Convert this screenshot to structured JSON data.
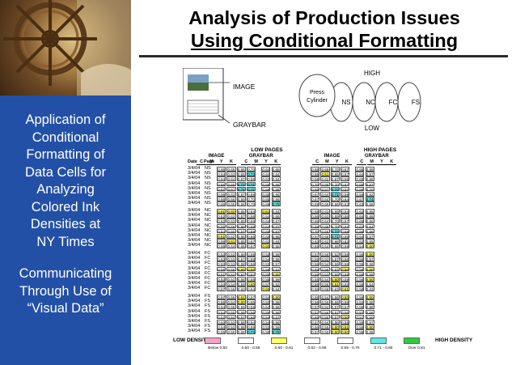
{
  "title": {
    "line1": "Analysis of Production Issues",
    "line2": "Using Conditional Formatting"
  },
  "sidebar": {
    "text1": [
      "Application of",
      "Conditional",
      "Formatting of",
      "Data Cells for",
      "Analyzing",
      "Colored Ink",
      "Densities at",
      "NY Times"
    ],
    "text2": [
      "Communicating",
      "Through Use of",
      "“Visual Data”"
    ]
  },
  "diagram": {
    "image_label": "IMAGE",
    "graybar_label": "GRAYBAR",
    "high_label": "HIGH",
    "low_label": "LOW",
    "press": "Press",
    "cylinder": "Cylinder",
    "units": [
      "NS",
      "NC",
      "FC",
      "FS"
    ]
  },
  "table": {
    "low_pages": "LOW PAGES",
    "high_pages": "HIGH PAGES",
    "group_image": "IMAGE",
    "group_graybar": "GRAYBAR",
    "col_date": "Date",
    "col_page": "Page",
    "cmyk": [
      "C",
      "M",
      "Y",
      "K"
    ],
    "row_date": "3/4/04",
    "groups": [
      {
        "page": "NS",
        "rows": [
          [
            "0.65",
            "0.65",
            "0.66",
            "0.70",
            "0.64",
            "0.65",
            "0.68",
            "0.68",
            "0.70",
            "0.67",
            "0.65",
            "0.69"
          ],
          [
            "0.64",
            "0.63",
            "0.65",
            "0.73",
            "0.64",
            "0.64",
            "0.65",
            "0.61",
            "0.65",
            "0.67",
            "0.64",
            "0.67"
          ],
          [
            "0.64",
            "0.64",
            "0.67",
            "0.68",
            "0.63",
            "0.64",
            "0.66",
            "0.62",
            "0.67",
            "0.66",
            "0.65",
            "0.68"
          ],
          [
            "0.66",
            "0.68",
            "0.72",
            "0.71",
            "0.66",
            "0.66",
            "0.70",
            "0.68",
            "0.70",
            "0.67",
            "0.65",
            "0.67"
          ],
          [
            "0.67",
            "0.67",
            "0.74",
            "0.71",
            "0.66",
            "0.68",
            "0.69",
            "0.67",
            "0.72",
            "0.67",
            "0.66",
            "0.70"
          ],
          [
            "0.65",
            "0.63",
            "0.67",
            "0.69",
            "0.65",
            "0.66",
            "0.67",
            "0.64",
            "0.71",
            "0.59",
            "0.59",
            "0.62"
          ],
          [
            "0.66",
            "0.66",
            "0.69",
            "0.70",
            "0.65",
            "0.66",
            "0.67",
            "0.64",
            "0.70",
            "0.64",
            "0.67",
            "0.74"
          ],
          [
            "0.66",
            "0.65",
            "0.66",
            "0.70",
            "0.66",
            "0.75",
            "0.69",
            "0.66",
            "0.66",
            "0.63",
            "0.63",
            "0.66"
          ]
        ]
      },
      {
        "page": "NC",
        "rows": [
          [
            "0.61",
            "0.60",
            "0.65",
            "0.64",
            "0.61",
            "0.64",
            "0.68",
            "0.63",
            "0.69",
            "0.64",
            "0.62",
            "0.65"
          ],
          [
            "0.62",
            "0.62",
            "0.67",
            "0.68",
            "0.64",
            "0.66",
            "0.66",
            "0.63",
            "0.69",
            "0.66",
            "0.64",
            "0.66"
          ],
          [
            "0.62",
            "0.63",
            "0.66",
            "0.66",
            "0.64",
            "0.67",
            "0.66",
            "0.64",
            "0.70",
            "0.67",
            "0.65",
            "0.66"
          ],
          [
            "0.65",
            "0.65",
            "0.68",
            "0.69",
            "0.64",
            "0.67",
            "0.69",
            "0.66",
            "0.70",
            "0.62",
            "0.62",
            "0.54"
          ],
          [
            "0.64",
            "0.65",
            "0.67",
            "0.69",
            "0.66",
            "0.67",
            "0.70",
            "0.66",
            "0.73",
            "0.68",
            "0.66",
            "0.69"
          ],
          [
            "0.61",
            "0.62",
            "0.66",
            "0.66",
            "0.63",
            "0.66",
            "0.67",
            "0.66",
            "0.71",
            "0.65",
            "0.64",
            "0.67"
          ],
          [
            "0.59",
            "0.61",
            "0.65",
            "0.67",
            "0.62",
            "0.64",
            "0.63",
            "0.62",
            "0.68",
            "0.63",
            "0.62",
            "0.65"
          ],
          [
            "0.65",
            "0.64",
            "0.65",
            "0.67",
            "0.60",
            "0.55",
            "0.59",
            "0.64",
            "0.66",
            "0.59",
            "0.54",
            "0.60"
          ]
        ]
      },
      {
        "page": "FC",
        "rows": [
          [
            "0.53",
            "0.53",
            "0.58",
            "0.59",
            "0.53",
            "0.58",
            "0.57",
            "0.56",
            "0.62",
            "0.58",
            "0.56",
            "0.60"
          ],
          [
            "0.53",
            "0.53",
            "0.57",
            "0.58",
            "0.54",
            "0.58",
            "0.55",
            "0.53",
            "0.57",
            "0.56",
            "0.55",
            "0.57"
          ],
          [
            "0.53",
            "0.53",
            "0.58",
            "0.56",
            "0.53",
            "0.57",
            "0.56",
            "0.54",
            "0.59",
            "0.58",
            "0.55",
            "0.58"
          ],
          [
            "0.56",
            "0.56",
            "0.60",
            "0.60",
            "0.56",
            "0.62",
            "0.59",
            "0.58",
            "0.63",
            "0.60",
            "0.58",
            "0.60"
          ],
          [
            "0.51",
            "0.52",
            "0.57",
            "0.57",
            "0.55",
            "0.60",
            "0.55",
            "0.53",
            "0.59",
            "0.58",
            "0.56",
            "0.59"
          ],
          [
            "0.53",
            "0.53",
            "0.58",
            "0.58",
            "0.55",
            "0.59",
            "0.55",
            "0.54",
            "0.60",
            "0.59",
            "0.56",
            "0.60"
          ],
          [
            "0.54",
            "0.54",
            "0.59",
            "0.60",
            "0.57",
            "0.62",
            "0.56",
            "0.56",
            "0.61",
            "0.63",
            "0.56",
            "0.64"
          ],
          [
            "0.57",
            "0.58",
            "0.63",
            "0.64",
            "0.60",
            "0.64",
            "0.58",
            "0.58",
            "0.63",
            "0.61",
            "0.58",
            "0.63"
          ]
        ]
      },
      {
        "page": "FS",
        "rows": [
          [
            "0.57",
            "0.56",
            "0.61",
            "0.57",
            "0.54",
            "0.60",
            "0.58",
            "0.54",
            "0.56",
            "0.60",
            "0.59",
            "0.60"
          ],
          [
            "0.56",
            "0.54",
            "0.60",
            "0.56",
            "0.53",
            "0.58",
            "0.56",
            "0.56",
            "0.58",
            "0.58",
            "0.54",
            "0.58"
          ],
          [
            "0.54",
            "0.55",
            "0.58",
            "0.56",
            "0.54",
            "0.56",
            "0.57",
            "0.54",
            "0.57",
            "0.57",
            "0.56",
            "0.58"
          ],
          [
            "0.54",
            "0.55",
            "0.58",
            "0.56",
            "0.55",
            "0.58",
            "0.57",
            "0.56",
            "0.57",
            "0.56",
            "0.57",
            "0.56"
          ],
          [
            "0.52",
            "0.54",
            "0.57",
            "0.56",
            "0.54",
            "0.57",
            "0.55",
            "0.55",
            "0.57",
            "0.60",
            "0.51",
            "0.50"
          ],
          [
            "0.53",
            "0.53",
            "0.58",
            "0.54",
            "0.54",
            "0.58",
            "0.57",
            "0.54",
            "0.58",
            "0.58",
            "0.55",
            "0.57"
          ],
          [
            "0.54",
            "0.53",
            "0.58",
            "0.59",
            "0.53",
            "0.59",
            "0.56",
            "0.55",
            "0.60",
            "0.61",
            "0.56",
            "0.60"
          ],
          [
            "0.55",
            "0.55",
            "0.58",
            "0.73",
            "0.58",
            "0.75",
            "0.57",
            "0.55",
            "0.60",
            "0.60",
            "0.58",
            "0.58"
          ]
        ]
      }
    ]
  },
  "legend": {
    "low_density": "LOW DENSITY",
    "high_density": "HIGH DENSITY",
    "items": [
      {
        "label": "Below 0.50",
        "color": "#f6a3c8"
      },
      {
        "label": "0.50 - 0.59",
        "color": "#ffffff"
      },
      {
        "label": "0.60 - 0.61",
        "color": "#ffff66"
      },
      {
        "label": "0.62 - 0.68",
        "color": "#ffffff"
      },
      {
        "label": "0.69 - 0.70",
        "color": "#ffffff"
      },
      {
        "label": "0.71 - 0.80",
        "color": "#5ce6e6"
      },
      {
        "label": "Over 0.81",
        "color": "#2ecc40"
      }
    ]
  }
}
